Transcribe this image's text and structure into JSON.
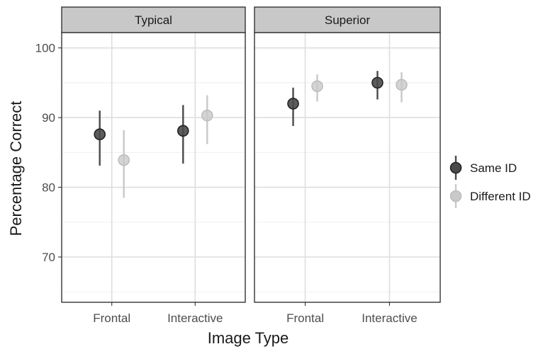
{
  "chart_data": {
    "type": "scatter",
    "subtype": "pointrange-facet",
    "facets": [
      "Typical",
      "Superior"
    ],
    "categories": [
      "Frontal",
      "Interactive"
    ],
    "xlabel": "Image Type",
    "ylabel": "Percentage Correct",
    "ylim": [
      63.5,
      102.2
    ],
    "yticks": [
      70,
      80,
      90,
      100
    ],
    "grid": true,
    "legend": {
      "position": "right"
    },
    "series": [
      {
        "name": "Same ID",
        "color": "#4a4a4a",
        "points": [
          {
            "facet": "Typical",
            "category": "Frontal",
            "y": 87.6,
            "ymin": 83.1,
            "ymax": 91.0
          },
          {
            "facet": "Typical",
            "category": "Interactive",
            "y": 88.1,
            "ymin": 83.4,
            "ymax": 91.8
          },
          {
            "facet": "Superior",
            "category": "Frontal",
            "y": 92.0,
            "ymin": 88.8,
            "ymax": 94.3
          },
          {
            "facet": "Superior",
            "category": "Interactive",
            "y": 95.0,
            "ymin": 92.6,
            "ymax": 96.7
          }
        ]
      },
      {
        "name": "Different ID",
        "color": "#c9c9c9",
        "points": [
          {
            "facet": "Typical",
            "category": "Frontal",
            "y": 83.9,
            "ymin": 78.5,
            "ymax": 88.2
          },
          {
            "facet": "Typical",
            "category": "Interactive",
            "y": 90.3,
            "ymin": 86.2,
            "ymax": 93.2
          },
          {
            "facet": "Superior",
            "category": "Frontal",
            "y": 94.5,
            "ymin": 92.3,
            "ymax": 96.2
          },
          {
            "facet": "Superior",
            "category": "Interactive",
            "y": 94.7,
            "ymin": 92.2,
            "ymax": 96.5
          }
        ]
      }
    ]
  }
}
